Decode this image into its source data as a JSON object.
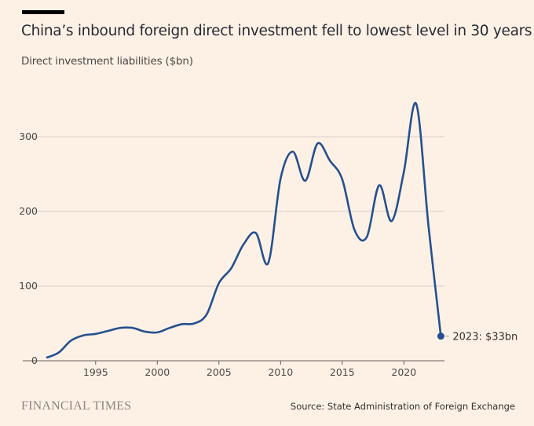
{
  "header": {
    "title": "China’s inbound foreign direct investment fell to lowest level in 30 years",
    "subtitle": "Direct investment liabilities ($bn)"
  },
  "footer": {
    "logo": "FINANCIAL TIMES",
    "source": "Source: State Administration of Foreign Exchange"
  },
  "colors": {
    "line": "#25508f",
    "grid": "#d9cfc6",
    "background": "#fdf1e6"
  },
  "chart_data": {
    "type": "line",
    "title": "China’s inbound foreign direct investment fell to lowest level in 30 years",
    "ylabel": "Direct investment liabilities ($bn)",
    "xlabel": "",
    "xlim": [
      1991,
      2023
    ],
    "ylim": [
      0,
      350
    ],
    "yticks": [
      0,
      100,
      200,
      300
    ],
    "xticks": [
      1995,
      2000,
      2005,
      2010,
      2015,
      2020
    ],
    "grid": true,
    "series": [
      {
        "name": "Direct investment liabilities",
        "x": [
          1991,
          1992,
          1993,
          1994,
          1995,
          1996,
          1997,
          1998,
          1999,
          2000,
          2001,
          2002,
          2003,
          2004,
          2005,
          2006,
          2007,
          2008,
          2009,
          2010,
          2011,
          2012,
          2013,
          2014,
          2015,
          2016,
          2017,
          2018,
          2019,
          2020,
          2021,
          2022,
          2023
        ],
        "values": [
          4,
          11,
          27,
          34,
          36,
          40,
          44,
          44,
          39,
          38,
          44,
          49,
          50,
          62,
          104,
          124,
          156,
          171,
          131,
          244,
          280,
          241,
          291,
          268,
          243,
          175,
          166,
          235,
          187,
          253,
          344,
          180,
          33
        ]
      }
    ],
    "annotations": [
      {
        "x": 2023,
        "y": 33,
        "text": "2023: $33bn"
      }
    ]
  }
}
